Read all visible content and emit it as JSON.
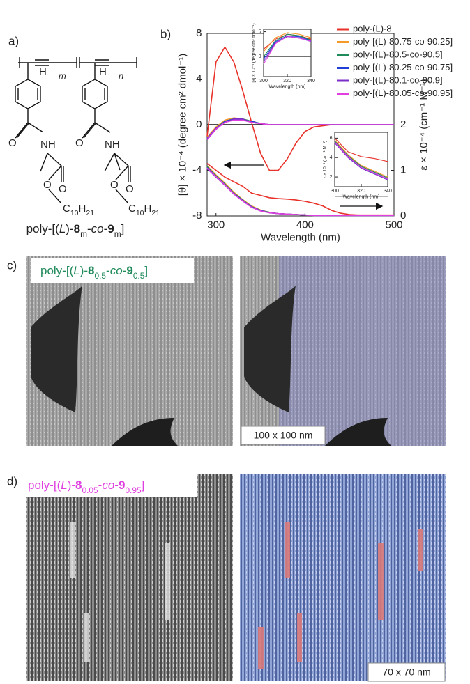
{
  "panel_a": {
    "label": "a)",
    "atoms": [
      "H",
      "H",
      "m",
      "n",
      "O",
      "NH",
      "O",
      "NH",
      "O",
      "O",
      "O",
      "O"
    ],
    "alkyl": [
      [
        "C",
        "10",
        "H",
        "21"
      ],
      [
        "C",
        "10",
        "H",
        "21"
      ]
    ],
    "caption": [
      "poly-[(",
      "L",
      ")-",
      "8",
      "m",
      "-",
      "co",
      "-",
      "9",
      "m",
      "]"
    ]
  },
  "panel_b": {
    "label": "b)"
  },
  "panel_c": {
    "label": "c)",
    "title": [
      "poly-[(",
      "L",
      ")-",
      "8",
      "0.5",
      "-",
      "co",
      "-",
      "9",
      "0.5",
      "]"
    ],
    "title_color": "#1f8a5a",
    "scale": "100 x 100 nm"
  },
  "panel_d": {
    "label": "d)",
    "title": [
      "poly-[(",
      "L",
      ")-",
      "8",
      "0.05",
      "-",
      "co",
      "-",
      "9",
      "0.95",
      "]"
    ],
    "title_color": "#e040e0",
    "scale": "70 x 70 nm"
  },
  "chart_data": [
    {
      "type": "line",
      "xlabel": "Wavelength (nm)",
      "ylabel": "[θ] × 10⁻⁴ (degree cm² dmol⁻¹)",
      "y2label": "ε × 10⁻⁴ (cm⁻¹ M⁻¹)",
      "x": [
        290,
        300,
        310,
        320,
        330,
        340,
        350,
        360,
        370,
        380,
        390,
        400,
        410,
        420,
        430,
        440,
        450,
        460,
        470,
        480,
        490,
        500
      ],
      "xlim": [
        290,
        500
      ],
      "xticks": [
        300,
        400,
        500
      ],
      "ylim": [
        -8,
        8
      ],
      "yticks": [
        -8,
        -4,
        0,
        4,
        8
      ],
      "y2lim": [
        0,
        4
      ],
      "y2ticks": [
        0,
        1,
        2
      ],
      "series": [
        {
          "name": "poly-(L)-8",
          "color": "#e8322a",
          "values": [
            -1.0,
            5.5,
            6.8,
            5.5,
            3.0,
            0.2,
            -2.5,
            -4.0,
            -4.0,
            -3.0,
            -1.6,
            -0.6,
            -0.2,
            -0.1,
            0,
            0,
            0,
            0,
            0,
            0,
            0,
            0
          ]
        },
        {
          "name": "poly-[(L)-80.75-co-90.25]",
          "color": "#f39a2b",
          "values": [
            -1.1,
            -0.2,
            0.4,
            0.6,
            0.5,
            0.3,
            0.1,
            0,
            0,
            0,
            0,
            0,
            0,
            0,
            0,
            0,
            0,
            0,
            0,
            0,
            0,
            0
          ]
        },
        {
          "name": "poly-[(L)-80.5-co-90.5]",
          "color": "#1f8a5a",
          "values": [
            -1.2,
            -0.3,
            0.3,
            0.5,
            0.5,
            0.3,
            0.1,
            0,
            0,
            0,
            0,
            0,
            0,
            0,
            0,
            0,
            0,
            0,
            0,
            0,
            0,
            0
          ]
        },
        {
          "name": "poly-[(L)-80.25-co-90.75]",
          "color": "#1f3fd6",
          "values": [
            -1.3,
            -0.4,
            0.3,
            0.5,
            0.4,
            0.3,
            0.1,
            0,
            0,
            0,
            0,
            0,
            0,
            0,
            0,
            0,
            0,
            0,
            0,
            0,
            0,
            0
          ]
        },
        {
          "name": "poly-[(L)-80.1-co-90.9]",
          "color": "#7b2fc8",
          "values": [
            -1.2,
            -0.3,
            0.2,
            0.5,
            0.5,
            0.2,
            0.1,
            0,
            0,
            0,
            0,
            0,
            0,
            0,
            0,
            0,
            0,
            0,
            0,
            0,
            0,
            0
          ]
        },
        {
          "name": "poly-[(L)-80.05-co-90.95]",
          "color": "#e040e0",
          "values": [
            -1.3,
            -0.4,
            0.2,
            0.4,
            0.4,
            0.2,
            0.1,
            0,
            0,
            0,
            0,
            0,
            0,
            0,
            0,
            0,
            0,
            0,
            0,
            0,
            0,
            0
          ]
        },
        {
          "axis": "y2",
          "color": "#e8322a",
          "values": [
            1.15,
            1.0,
            0.85,
            0.75,
            0.65,
            0.5,
            0.45,
            0.4,
            0.38,
            0.37,
            0.35,
            0.32,
            0.28,
            0.22,
            0.12,
            0.06,
            0.03,
            0.02,
            0.02,
            0.02,
            0.02,
            0.02
          ]
        },
        {
          "axis": "y2",
          "color": "#f39a2b",
          "values": [
            1.1,
            0.9,
            0.72,
            0.52,
            0.36,
            0.22,
            0.13,
            0.08,
            0.05,
            0.04,
            0.03,
            0.02,
            0.01,
            0.01,
            0.01,
            0.01,
            0.01,
            0.01,
            0.01,
            0.01,
            0.01,
            0.01
          ]
        },
        {
          "axis": "y2",
          "color": "#1f8a5a",
          "values": [
            1.08,
            0.88,
            0.7,
            0.5,
            0.35,
            0.2,
            0.12,
            0.08,
            0.05,
            0.04,
            0.03,
            0.02,
            0.01,
            0.01,
            0.01,
            0.01,
            0.01,
            0.01,
            0.01,
            0.01,
            0.01,
            0.01
          ]
        },
        {
          "axis": "y2",
          "color": "#1f3fd6",
          "values": [
            1.06,
            0.86,
            0.68,
            0.49,
            0.34,
            0.2,
            0.12,
            0.07,
            0.05,
            0.04,
            0.03,
            0.02,
            0.01,
            0.01,
            0.01,
            0.01,
            0.01,
            0.01,
            0.01,
            0.01,
            0.01,
            0.01
          ]
        },
        {
          "axis": "y2",
          "color": "#7b2fc8",
          "values": [
            1.04,
            0.85,
            0.67,
            0.48,
            0.33,
            0.19,
            0.11,
            0.07,
            0.05,
            0.04,
            0.03,
            0.02,
            0.01,
            0.01,
            0.01,
            0.01,
            0.01,
            0.01,
            0.01,
            0.01,
            0.01,
            0.01
          ]
        },
        {
          "axis": "y2",
          "color": "#e040e0",
          "values": [
            1.05,
            0.86,
            0.68,
            0.48,
            0.33,
            0.19,
            0.11,
            0.07,
            0.05,
            0.04,
            0.03,
            0.02,
            0.01,
            0.01,
            0.01,
            0.01,
            0.01,
            0.01,
            0.01,
            0.01,
            0.01,
            0.01
          ]
        }
      ]
    },
    {
      "type": "line",
      "xlabel": "Wavelength (nm)",
      "ylabel": "[θ] × 10⁻³ (degree cm² dmol⁻¹)",
      "x": [
        300,
        310,
        320,
        330,
        340
      ],
      "xlim": [
        300,
        340
      ],
      "xticks": [
        300,
        320,
        340
      ],
      "ylim": [
        -4,
        5.5
      ],
      "yticks": [
        0,
        5
      ],
      "series": [
        {
          "color": "#e8322a",
          "values": [
            1.5,
            3.5,
            4.5,
            4.2,
            3.5
          ]
        },
        {
          "color": "#f39a2b",
          "values": [
            1.0,
            3.8,
            4.8,
            4.5,
            3.8
          ]
        },
        {
          "color": "#1f8a5a",
          "values": [
            0.0,
            3.2,
            4.5,
            4.2,
            3.3
          ]
        },
        {
          "color": "#1f3fd6",
          "values": [
            -0.5,
            3.0,
            4.2,
            4.0,
            3.2
          ]
        },
        {
          "color": "#7b2fc8",
          "values": [
            -1.0,
            2.8,
            4.0,
            3.8,
            3.0
          ]
        },
        {
          "color": "#e040e0",
          "values": [
            -1.5,
            2.6,
            4.1,
            3.7,
            3.1
          ]
        }
      ]
    },
    {
      "type": "line",
      "xlabel": "Wavelength (nm)",
      "ylabel": "ε × 10⁻³ (cm⁻¹ M⁻¹)",
      "x": [
        300,
        310,
        320,
        330,
        340
      ],
      "xlim": [
        300,
        340
      ],
      "xticks": [
        300,
        320,
        340
      ],
      "ylim": [
        1,
        6.6
      ],
      "yticks": [
        2,
        4,
        6
      ],
      "series": [
        {
          "color": "#e8322a",
          "values": [
            6.0,
            4.6,
            4.1,
            3.9,
            3.6
          ]
        },
        {
          "color": "#f39a2b",
          "values": [
            5.8,
            4.3,
            3.2,
            2.6,
            2.0
          ]
        },
        {
          "color": "#1f8a5a",
          "values": [
            5.7,
            4.2,
            3.1,
            2.5,
            1.9
          ]
        },
        {
          "color": "#1f3fd6",
          "values": [
            5.6,
            4.1,
            3.0,
            2.4,
            1.8
          ]
        },
        {
          "color": "#7b2fc8",
          "values": [
            5.5,
            4.0,
            2.9,
            2.3,
            1.7
          ]
        },
        {
          "color": "#e040e0",
          "values": [
            5.6,
            4.1,
            3.0,
            2.4,
            1.8
          ]
        }
      ]
    }
  ]
}
